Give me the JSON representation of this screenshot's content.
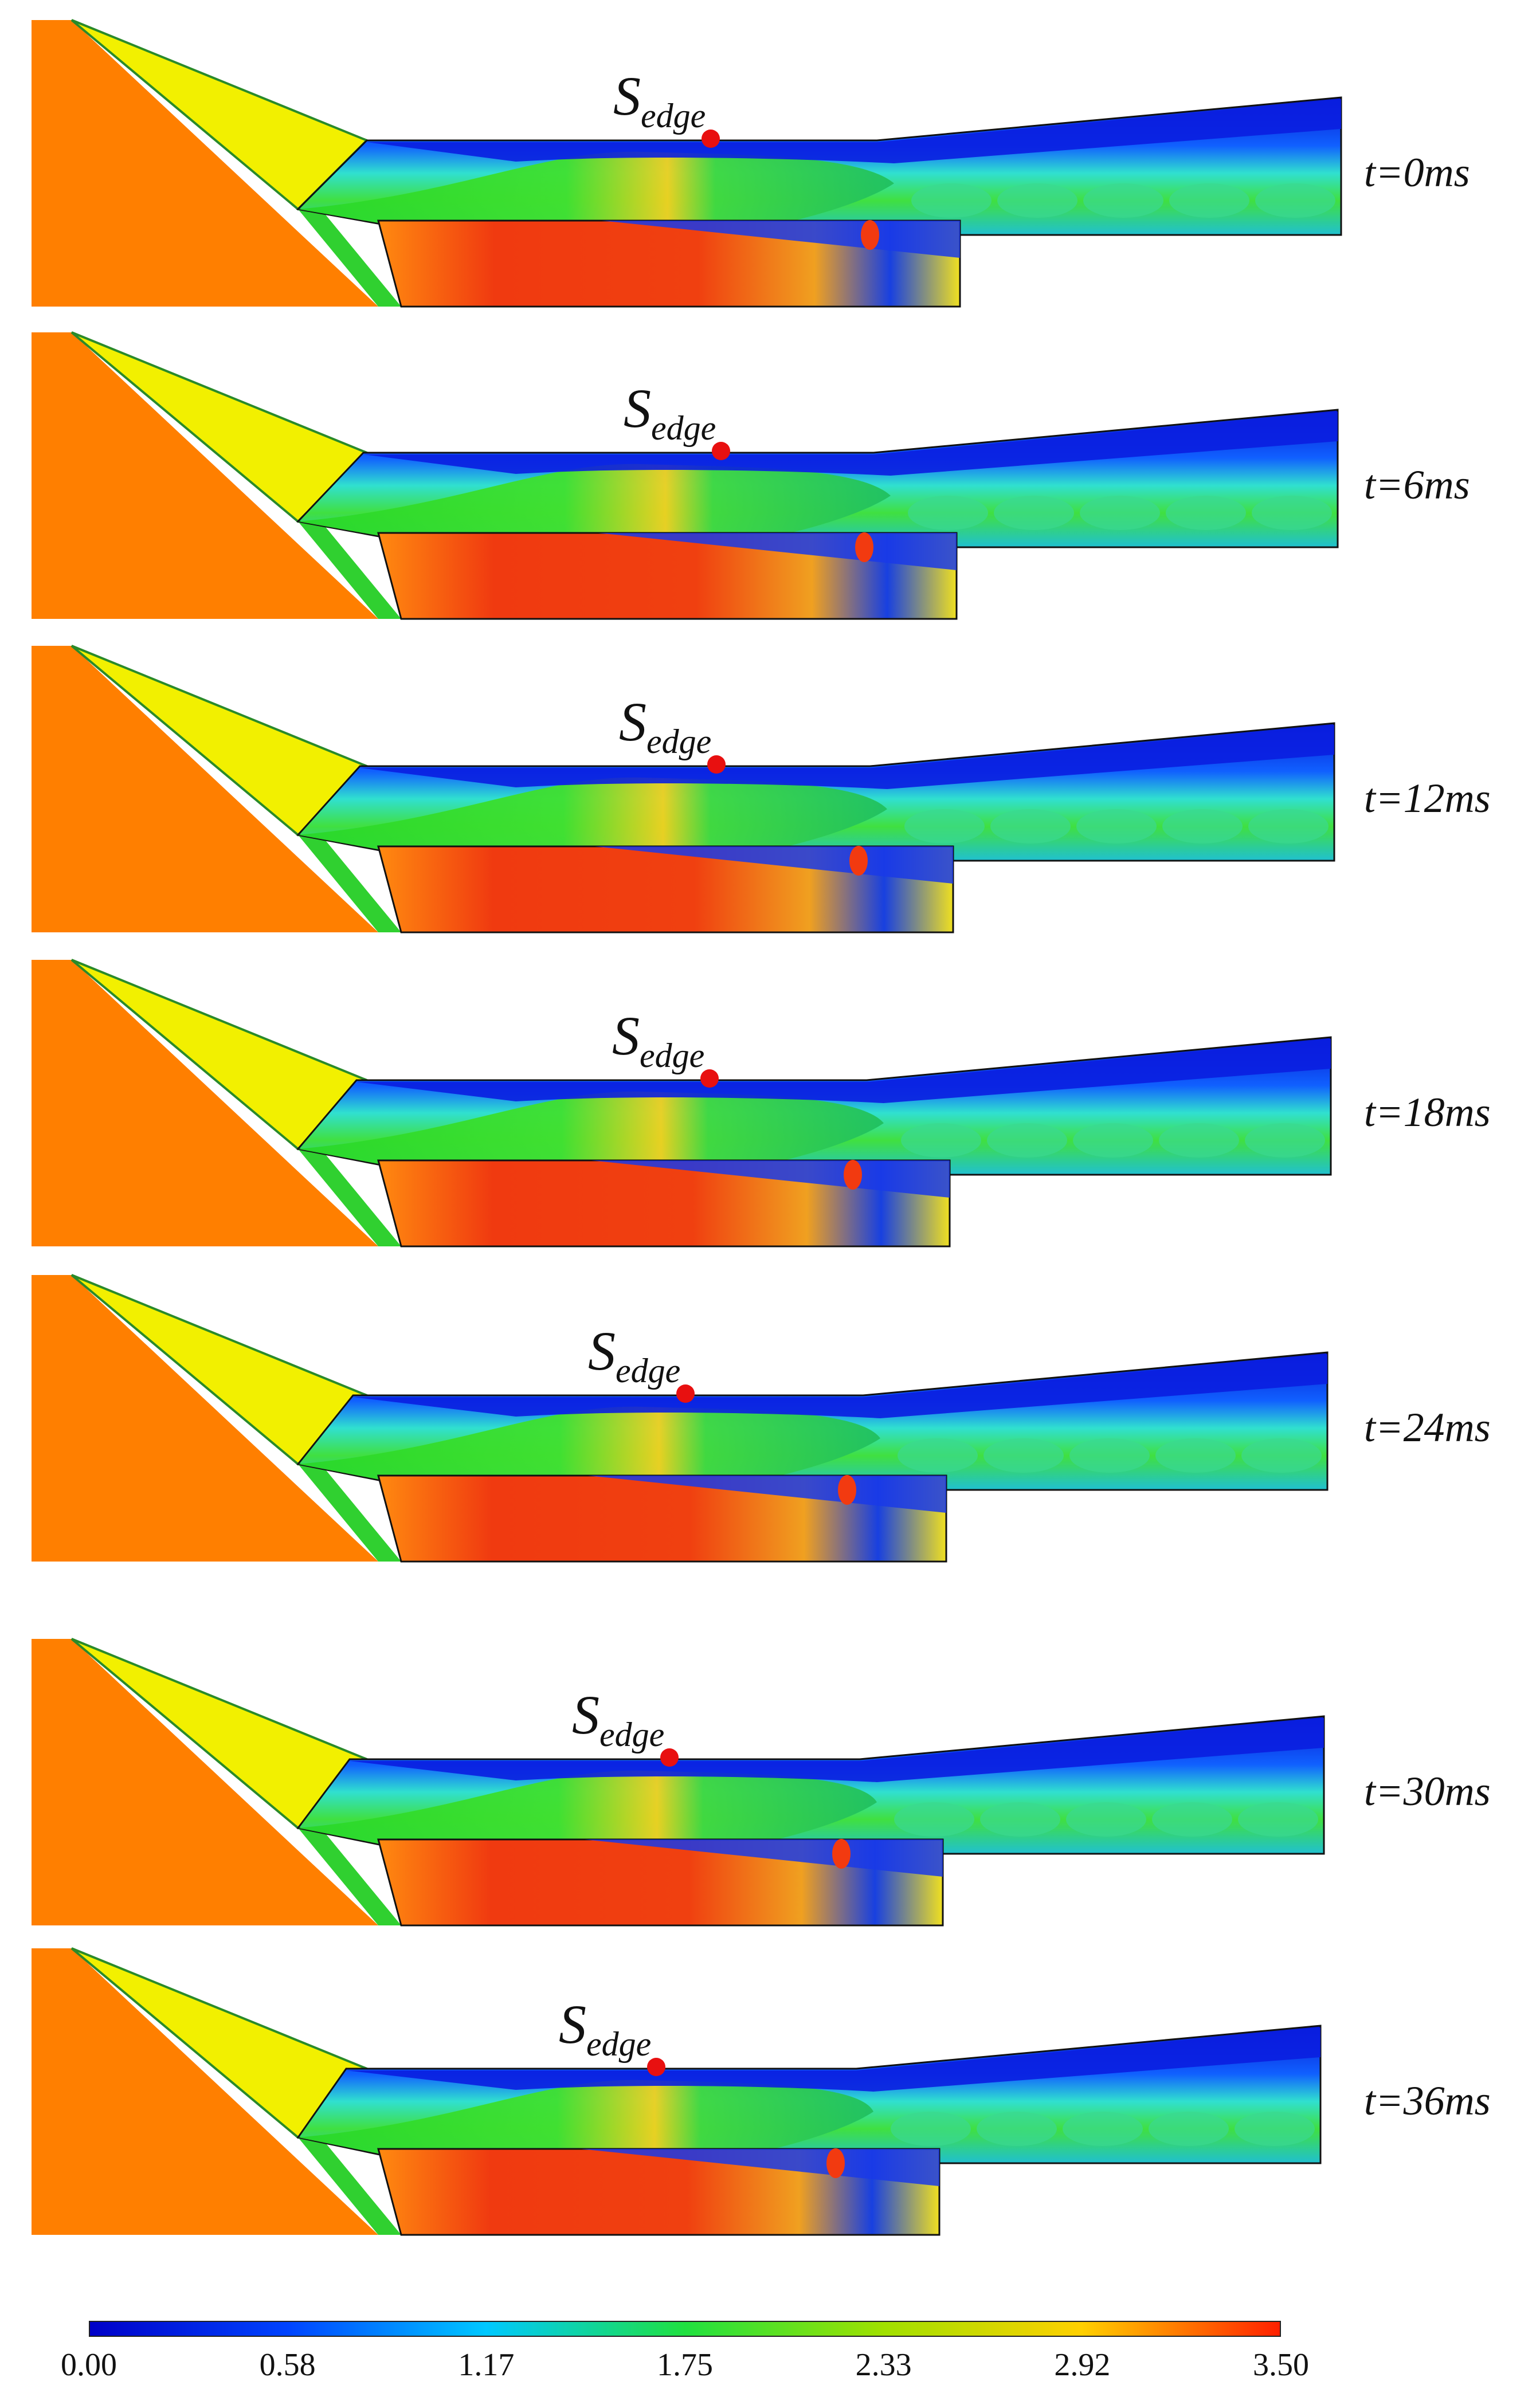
{
  "panels": [
    {
      "time": "t=0ms",
      "marker": "S",
      "marker_sub": "edge"
    },
    {
      "time": "t=6ms",
      "marker": "S",
      "marker_sub": "edge"
    },
    {
      "time": "t=12ms",
      "marker": "S",
      "marker_sub": "edge"
    },
    {
      "time": "t=18ms",
      "marker": "S",
      "marker_sub": "edge"
    },
    {
      "time": "t=24ms",
      "marker": "S",
      "marker_sub": "edge"
    },
    {
      "time": "t=30ms",
      "marker": "S",
      "marker_sub": "edge"
    },
    {
      "time": "t=36ms",
      "marker": "S",
      "marker_sub": "edge"
    }
  ],
  "colorbar": {
    "ticks": [
      "0.00",
      "0.58",
      "1.17",
      "1.75",
      "2.33",
      "2.92",
      "3.50"
    ],
    "colors": [
      "#0000c8",
      "#0044ff",
      "#00c8ff",
      "#20e040",
      "#a0e000",
      "#ffd000",
      "#ff2000"
    ]
  },
  "colors": {
    "ramp": "#ff7f00",
    "forebody": "#f2f000",
    "core_flow": "#30d830",
    "low_speed": "#0a1ee0",
    "bypass_hot": "#f23a10",
    "marker": "#e81010"
  }
}
